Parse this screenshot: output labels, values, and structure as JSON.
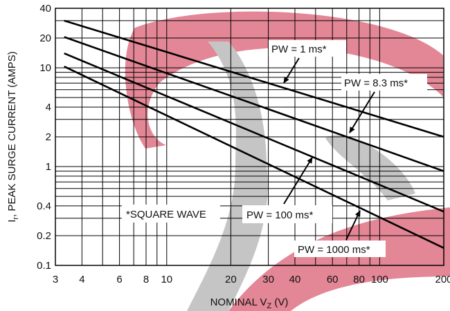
{
  "chart_data": {
    "type": "line",
    "title": "",
    "xlabel": "NOMINAL V",
    "xlabel_sub": "Z",
    "xlabel_unit": " (V)",
    "ylabel": "I",
    "ylabel_sub": "r",
    "ylabel_rest": ", PEAK SURGE CURRENT (AMPS)",
    "x_scale": "log",
    "y_scale": "log",
    "xlim": [
      3,
      200
    ],
    "ylim": [
      0.1,
      40
    ],
    "x_tick_labels": [
      {
        "v": 3,
        "t": "3"
      },
      {
        "v": 4,
        "t": "4"
      },
      {
        "v": 6,
        "t": "6"
      },
      {
        "v": 8,
        "t": "8"
      },
      {
        "v": 10,
        "t": "10"
      },
      {
        "v": 20,
        "t": "20"
      },
      {
        "v": 30,
        "t": "30"
      },
      {
        "v": 40,
        "t": "40"
      },
      {
        "v": 60,
        "t": "60"
      },
      {
        "v": 80,
        "t": "80"
      },
      {
        "v": 100,
        "t": "100"
      },
      {
        "v": 200,
        "t": "200"
      }
    ],
    "y_tick_labels": [
      {
        "v": 0.1,
        "t": "0.1"
      },
      {
        "v": 0.2,
        "t": "0.2"
      },
      {
        "v": 0.4,
        "t": "0.4"
      },
      {
        "v": 1,
        "t": "1"
      },
      {
        "v": 2,
        "t": "2"
      },
      {
        "v": 4,
        "t": "4"
      },
      {
        "v": 10,
        "t": "10"
      },
      {
        "v": 20,
        "t": "20"
      },
      {
        "v": 40,
        "t": "40"
      }
    ],
    "x_grid": [
      3,
      4,
      5,
      6,
      7,
      8,
      9,
      10,
      20,
      30,
      40,
      50,
      60,
      70,
      80,
      90,
      100,
      200
    ],
    "y_grid": [
      0.1,
      0.2,
      0.3,
      0.4,
      0.5,
      0.6,
      0.7,
      0.8,
      0.9,
      1,
      2,
      3,
      4,
      5,
      6,
      7,
      8,
      9,
      10,
      20,
      30,
      40
    ],
    "grid": true,
    "series": [
      {
        "name": "PW = 1 ms*",
        "x": [
          3.3,
          200
        ],
        "y": [
          30,
          2.0
        ]
      },
      {
        "name": "PW = 8.3 ms*",
        "x": [
          3.3,
          200
        ],
        "y": [
          20.5,
          0.9
        ]
      },
      {
        "name": "PW = 100 ms*",
        "x": [
          3.3,
          200
        ],
        "y": [
          14,
          0.35
        ]
      },
      {
        "name": "PW = 1000 ms*",
        "x": [
          3.3,
          200
        ],
        "y": [
          10.3,
          0.15
        ]
      }
    ],
    "annotations": [
      {
        "text": "PW = 1 ms*",
        "target": [
          36,
          7.3
        ]
      },
      {
        "text": "PW = 8.3 ms*",
        "target": [
          72,
          1.9
        ]
      },
      {
        "text": "PW = 100 ms*",
        "target": [
          47,
          1.25
        ]
      },
      {
        "text": "PW = 1000 ms*",
        "target": [
          84,
          0.4
        ]
      },
      {
        "text": "*SQUARE WAVE"
      }
    ]
  }
}
